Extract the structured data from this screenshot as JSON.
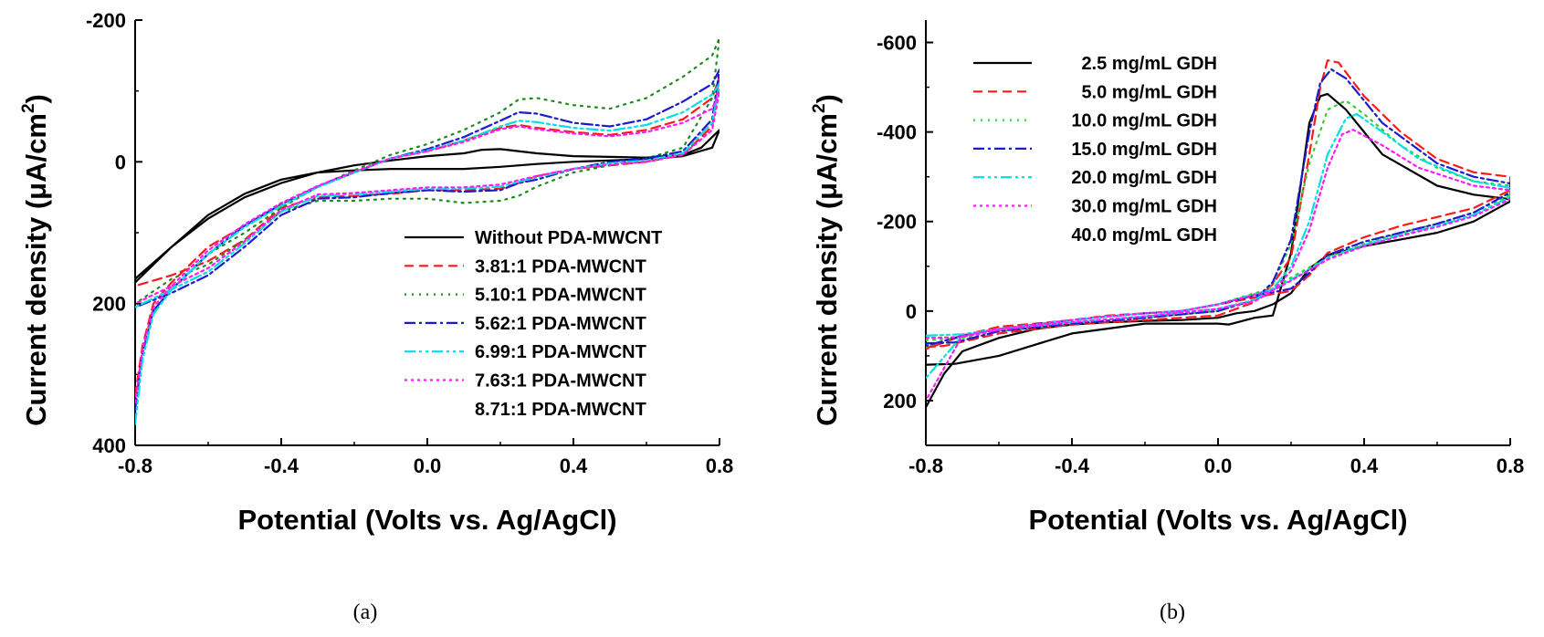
{
  "chart_data": [
    {
      "type": "line",
      "panel_label": "(a)",
      "xlabel": "Potential (Volts vs. Ag/AgCl)",
      "ylabel": "Current density (μA/cm",
      "ylabel_sup": "2",
      "ylabel_suffix": ")",
      "xlim": [
        -0.8,
        0.8
      ],
      "ylim": [
        400,
        -200
      ],
      "y_inverted": true,
      "xticks": [
        "-0.8",
        "-0.4",
        "0.0",
        "0.4",
        "0.8"
      ],
      "xtick_values": [
        -0.8,
        -0.4,
        0.0,
        0.4,
        0.8
      ],
      "yticks": [
        "-200",
        "0",
        "200",
        "400"
      ],
      "ytick_values": [
        -200,
        0,
        200,
        400
      ],
      "legend_position": "bottom-right",
      "series": [
        {
          "name": "Without PDA-MWCNT",
          "color": "#000000",
          "dash": "solid",
          "x": [
            -0.8,
            -0.7,
            -0.6,
            -0.5,
            -0.4,
            -0.3,
            -0.2,
            -0.1,
            0.0,
            0.1,
            0.15,
            0.2,
            0.3,
            0.4,
            0.5,
            0.6,
            0.7,
            0.75,
            0.8,
            0.78,
            0.7,
            0.6,
            0.5,
            0.4,
            0.3,
            0.2,
            0.1,
            0.0,
            -0.1,
            -0.2,
            -0.3,
            -0.4,
            -0.5,
            -0.6,
            -0.7,
            -0.8
          ],
          "y": [
            165,
            120,
            80,
            50,
            30,
            15,
            5,
            -2,
            -8,
            -12,
            -17,
            -18,
            -12,
            -8,
            -7,
            -6,
            -10,
            -20,
            -45,
            -20,
            -8,
            -4,
            -2,
            0,
            3,
            7,
            10,
            10,
            10,
            12,
            15,
            25,
            45,
            75,
            120,
            170
          ]
        },
        {
          "name": "3.81:1 PDA-MWCNT",
          "color": "#ff1a1a",
          "dash": "10,6",
          "x": [
            -0.8,
            -0.78,
            -0.75,
            -0.7,
            -0.6,
            -0.5,
            -0.4,
            -0.3,
            -0.2,
            -0.1,
            0.0,
            0.1,
            0.2,
            0.25,
            0.3,
            0.4,
            0.5,
            0.6,
            0.7,
            0.78,
            0.8,
            0.78,
            0.7,
            0.6,
            0.5,
            0.4,
            0.3,
            0.25,
            0.2,
            0.1,
            0.0,
            -0.1,
            -0.2,
            -0.3,
            -0.4,
            -0.5,
            -0.6,
            -0.7,
            -0.8
          ],
          "y": [
            330,
            260,
            200,
            170,
            120,
            90,
            60,
            35,
            15,
            -5,
            -15,
            -30,
            -48,
            -52,
            -48,
            -42,
            -38,
            -45,
            -60,
            -90,
            -120,
            -50,
            -10,
            0,
            5,
            10,
            20,
            30,
            38,
            40,
            40,
            45,
            48,
            50,
            65,
            110,
            140,
            160,
            175
          ]
        },
        {
          "name": "5.10:1 PDA-MWCNT",
          "color": "#1a8a1a",
          "dash": "2,6",
          "x": [
            -0.8,
            -0.78,
            -0.75,
            -0.7,
            -0.6,
            -0.5,
            -0.4,
            -0.3,
            -0.2,
            -0.1,
            0.0,
            0.1,
            0.2,
            0.25,
            0.3,
            0.4,
            0.5,
            0.6,
            0.7,
            0.78,
            0.8,
            0.78,
            0.7,
            0.6,
            0.5,
            0.4,
            0.3,
            0.25,
            0.2,
            0.1,
            0.0,
            -0.1,
            -0.2,
            -0.3,
            -0.4,
            -0.5,
            -0.6,
            -0.7,
            -0.8
          ],
          "y": [
            340,
            270,
            210,
            180,
            130,
            100,
            65,
            35,
            12,
            -10,
            -25,
            -45,
            -70,
            -88,
            -90,
            -80,
            -75,
            -90,
            -120,
            -150,
            -175,
            -90,
            -20,
            -5,
            5,
            15,
            35,
            48,
            55,
            58,
            52,
            52,
            55,
            55,
            70,
            110,
            145,
            165,
            200
          ]
        },
        {
          "name": "5.62:1 PDA-MWCNT",
          "color": "#1a1ad0",
          "dash": "12,4,3,4",
          "x": [
            -0.8,
            -0.78,
            -0.75,
            -0.7,
            -0.6,
            -0.5,
            -0.4,
            -0.3,
            -0.2,
            -0.1,
            0.0,
            0.1,
            0.2,
            0.25,
            0.3,
            0.4,
            0.5,
            0.6,
            0.7,
            0.78,
            0.8,
            0.78,
            0.7,
            0.6,
            0.5,
            0.4,
            0.3,
            0.25,
            0.2,
            0.1,
            0.0,
            -0.1,
            -0.2,
            -0.3,
            -0.4,
            -0.5,
            -0.6,
            -0.7,
            -0.8
          ],
          "y": [
            350,
            270,
            210,
            180,
            130,
            90,
            60,
            35,
            15,
            -5,
            -18,
            -35,
            -58,
            -70,
            -68,
            -55,
            -50,
            -60,
            -85,
            -110,
            -130,
            -60,
            -15,
            -5,
            0,
            10,
            25,
            30,
            40,
            42,
            40,
            44,
            50,
            52,
            75,
            120,
            160,
            185,
            205
          ]
        },
        {
          "name": "6.99:1 PDA-MWCNT",
          "color": "#00e0e0",
          "dash": "12,4,3,4,3,4",
          "x": [
            -0.8,
            -0.78,
            -0.75,
            -0.7,
            -0.6,
            -0.5,
            -0.4,
            -0.3,
            -0.2,
            -0.1,
            0.0,
            0.1,
            0.2,
            0.25,
            0.3,
            0.4,
            0.5,
            0.6,
            0.7,
            0.78,
            0.8,
            0.78,
            0.7,
            0.6,
            0.5,
            0.4,
            0.3,
            0.25,
            0.2,
            0.1,
            0.0,
            -0.1,
            -0.2,
            -0.3,
            -0.4,
            -0.5,
            -0.6,
            -0.7,
            -0.8
          ],
          "y": [
            370,
            280,
            215,
            180,
            130,
            92,
            62,
            36,
            15,
            -5,
            -16,
            -30,
            -50,
            -58,
            -56,
            -48,
            -44,
            -52,
            -70,
            -95,
            -110,
            -55,
            -12,
            -2,
            2,
            10,
            22,
            28,
            35,
            38,
            38,
            42,
            46,
            48,
            70,
            115,
            155,
            180,
            205
          ]
        },
        {
          "name": "7.63:1 PDA-MWCNT",
          "color": "#ff1aff",
          "dash": "3,4",
          "x": [
            -0.8,
            -0.78,
            -0.75,
            -0.7,
            -0.6,
            -0.5,
            -0.4,
            -0.3,
            -0.2,
            -0.1,
            0.0,
            0.1,
            0.2,
            0.25,
            0.3,
            0.4,
            0.5,
            0.6,
            0.7,
            0.78,
            0.8,
            0.78,
            0.7,
            0.6,
            0.5,
            0.4,
            0.3,
            0.25,
            0.2,
            0.1,
            0.0,
            -0.1,
            -0.2,
            -0.3,
            -0.4,
            -0.5,
            -0.6,
            -0.7,
            -0.8
          ],
          "y": [
            340,
            265,
            205,
            175,
            125,
            88,
            58,
            34,
            14,
            -5,
            -15,
            -28,
            -46,
            -50,
            -46,
            -40,
            -36,
            -42,
            -55,
            -75,
            -100,
            -45,
            -10,
            0,
            4,
            10,
            20,
            26,
            32,
            36,
            36,
            40,
            44,
            46,
            68,
            112,
            150,
            175,
            200
          ]
        },
        {
          "name": "8.71:1 PDA-MWCNT",
          "color": "#ffffff",
          "dash": "solid",
          "x": [],
          "y": []
        }
      ]
    },
    {
      "type": "line",
      "panel_label": "(b)",
      "xlabel": "Potential (Volts vs. Ag/AgCl)",
      "ylabel": "Current density (μA/cm",
      "ylabel_sup": "2",
      "ylabel_suffix": ")",
      "xlim": [
        -0.8,
        0.8
      ],
      "ylim": [
        300,
        -650
      ],
      "y_inverted": true,
      "xticks": [
        "-0.8",
        "-0.4",
        "0.0",
        "0.4",
        "0.8"
      ],
      "xtick_values": [
        -0.8,
        -0.4,
        0.0,
        0.4,
        0.8
      ],
      "yticks": [
        "-600",
        "-400",
        "-200",
        "0",
        "200"
      ],
      "ytick_values": [
        -600,
        -400,
        -200,
        0,
        200
      ],
      "legend_position": "top-left",
      "series": [
        {
          "name": "2.5 mg/mL GDH",
          "color": "#000000",
          "dash": "solid",
          "x": [
            -0.8,
            -0.72,
            -0.6,
            -0.4,
            -0.2,
            0.0,
            0.03,
            0.1,
            0.15,
            0.2,
            0.25,
            0.28,
            0.3,
            0.35,
            0.45,
            0.6,
            0.7,
            0.8,
            0.8,
            0.7,
            0.6,
            0.5,
            0.4,
            0.3,
            0.25,
            0.2,
            0.15,
            0.1,
            0.05,
            0.0,
            -0.1,
            -0.2,
            -0.3,
            -0.4,
            -0.5,
            -0.6,
            -0.7,
            -0.75,
            -0.8
          ],
          "y": [
            120,
            118,
            100,
            50,
            28,
            28,
            30,
            15,
            10,
            -130,
            -420,
            -480,
            -485,
            -450,
            -350,
            -280,
            -260,
            -250,
            -245,
            -200,
            -175,
            -160,
            -145,
            -125,
            -95,
            -40,
            -15,
            0,
            5,
            15,
            20,
            22,
            25,
            30,
            40,
            60,
            90,
            140,
            215
          ]
        },
        {
          "name": "5.0 mg/mL GDH",
          "color": "#ff1a1a",
          "dash": "10,6",
          "x": [
            -0.8,
            -0.75,
            -0.6,
            -0.4,
            -0.2,
            0.0,
            0.1,
            0.15,
            0.2,
            0.25,
            0.28,
            0.3,
            0.33,
            0.4,
            0.5,
            0.6,
            0.7,
            0.8,
            0.8,
            0.7,
            0.6,
            0.5,
            0.4,
            0.3,
            0.25,
            0.2,
            0.15,
            0.1,
            0.0,
            -0.1,
            -0.2,
            -0.3,
            -0.4,
            -0.5,
            -0.6,
            -0.7,
            -0.8
          ],
          "y": [
            80,
            78,
            50,
            30,
            20,
            10,
            -20,
            -60,
            -120,
            -350,
            -500,
            -560,
            -555,
            -480,
            -400,
            -340,
            -310,
            -300,
            -270,
            -230,
            -210,
            -190,
            -165,
            -130,
            -80,
            -45,
            -38,
            -30,
            -15,
            0,
            5,
            10,
            20,
            28,
            35,
            55,
            85
          ]
        },
        {
          "name": "10.0 mg/mL GDH",
          "color": "#33cc33",
          "dash": "2,6",
          "x": [
            -0.8,
            -0.7,
            -0.6,
            -0.4,
            -0.2,
            0.0,
            0.1,
            0.15,
            0.2,
            0.25,
            0.3,
            0.35,
            0.4,
            0.5,
            0.6,
            0.7,
            0.8,
            0.8,
            0.7,
            0.6,
            0.5,
            0.4,
            0.3,
            0.2,
            0.15,
            0.1,
            0.0,
            -0.1,
            -0.2,
            -0.3,
            -0.4,
            -0.5,
            -0.6,
            -0.7,
            -0.8
          ],
          "y": [
            65,
            60,
            45,
            28,
            15,
            0,
            -25,
            -60,
            -150,
            -330,
            -450,
            -470,
            -440,
            -370,
            -320,
            -290,
            -280,
            -260,
            -220,
            -195,
            -175,
            -150,
            -120,
            -75,
            -50,
            -40,
            -15,
            0,
            5,
            12,
            20,
            30,
            40,
            55,
            80
          ]
        },
        {
          "name": "15.0 mg/mL GDH",
          "color": "#1a1ad0",
          "dash": "12,4,3,4",
          "x": [
            -0.8,
            -0.72,
            -0.6,
            -0.4,
            -0.2,
            0.0,
            0.1,
            0.15,
            0.2,
            0.25,
            0.28,
            0.31,
            0.35,
            0.45,
            0.6,
            0.7,
            0.8,
            0.8,
            0.7,
            0.6,
            0.5,
            0.4,
            0.3,
            0.25,
            0.2,
            0.15,
            0.1,
            0.0,
            -0.1,
            -0.2,
            -0.3,
            -0.4,
            -0.5,
            -0.6,
            -0.7,
            -0.8
          ],
          "y": [
            72,
            70,
            45,
            28,
            15,
            0,
            -25,
            -65,
            -160,
            -400,
            -510,
            -540,
            -520,
            -420,
            -330,
            -300,
            -285,
            -265,
            -220,
            -195,
            -175,
            -155,
            -125,
            -85,
            -50,
            -42,
            -35,
            -15,
            0,
            5,
            12,
            20,
            30,
            40,
            55,
            78
          ]
        },
        {
          "name": "20.0 mg/mL GDH",
          "color": "#00e0e0",
          "dash": "12,4,3,4,3,4",
          "x": [
            -0.8,
            -0.7,
            -0.6,
            -0.4,
            -0.2,
            0.0,
            0.1,
            0.15,
            0.2,
            0.25,
            0.3,
            0.35,
            0.38,
            0.45,
            0.55,
            0.7,
            0.8,
            0.8,
            0.7,
            0.6,
            0.5,
            0.4,
            0.3,
            0.2,
            0.15,
            0.1,
            0.0,
            -0.1,
            -0.2,
            -0.3,
            -0.4,
            -0.5,
            -0.6,
            -0.7,
            -0.8
          ],
          "y": [
            55,
            52,
            40,
            25,
            12,
            -5,
            -25,
            -50,
            -100,
            -200,
            -350,
            -430,
            -440,
            -400,
            -340,
            -290,
            -275,
            -255,
            -215,
            -190,
            -170,
            -148,
            -118,
            -70,
            -48,
            -38,
            -15,
            0,
            5,
            12,
            20,
            30,
            40,
            55,
            150
          ]
        },
        {
          "name": "30.0 mg/mL GDH",
          "color": "#ff1aff",
          "dash": "3,4",
          "x": [
            -0.8,
            -0.7,
            -0.6,
            -0.4,
            -0.2,
            0.0,
            0.1,
            0.15,
            0.2,
            0.25,
            0.3,
            0.34,
            0.37,
            0.45,
            0.55,
            0.7,
            0.8,
            0.8,
            0.7,
            0.6,
            0.5,
            0.4,
            0.3,
            0.2,
            0.15,
            0.1,
            0.0,
            -0.1,
            -0.2,
            -0.3,
            -0.4,
            -0.5,
            -0.6,
            -0.7,
            -0.8
          ],
          "y": [
            60,
            58,
            42,
            25,
            12,
            -5,
            -22,
            -45,
            -90,
            -180,
            -320,
            -395,
            -405,
            -370,
            -320,
            -280,
            -270,
            -250,
            -212,
            -188,
            -168,
            -145,
            -115,
            -68,
            -46,
            -36,
            -15,
            0,
            5,
            12,
            20,
            30,
            40,
            55,
            200
          ]
        },
        {
          "name": "40.0 mg/mL GDH",
          "color": "#ffffff",
          "dash": "solid",
          "x": [],
          "y": []
        }
      ]
    }
  ]
}
